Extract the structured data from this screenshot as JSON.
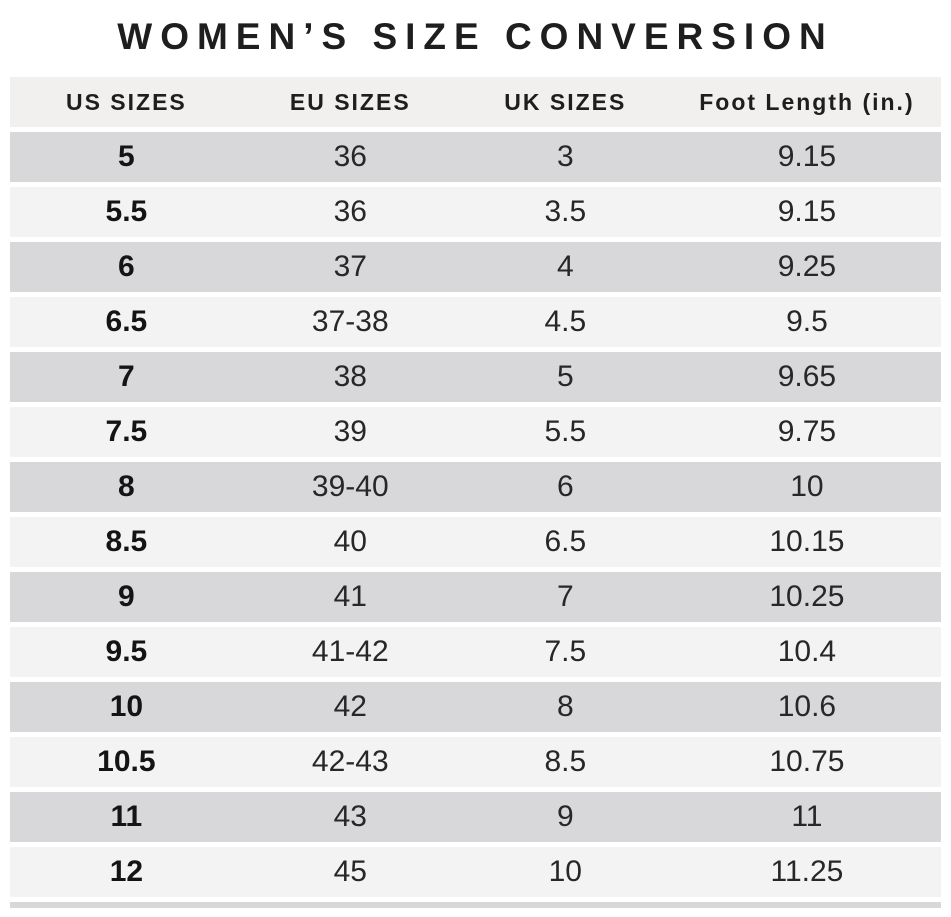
{
  "title": "WOMEN’S SIZE CONVERSION",
  "chart_data": {
    "type": "table",
    "title": "WOMEN’S SIZE CONVERSION",
    "columns": [
      "US SIZES",
      "EU SIZES",
      "UK SIZES",
      "Foot Length (in.)"
    ],
    "rows": [
      [
        "5",
        "36",
        "3",
        "9.15"
      ],
      [
        "5.5",
        "36",
        "3.5",
        "9.15"
      ],
      [
        "6",
        "37",
        "4",
        "9.25"
      ],
      [
        "6.5",
        "37-38",
        "4.5",
        "9.5"
      ],
      [
        "7",
        "38",
        "5",
        "9.65"
      ],
      [
        "7.5",
        "39",
        "5.5",
        "9.75"
      ],
      [
        "8",
        "39-40",
        "6",
        "10"
      ],
      [
        "8.5",
        "40",
        "6.5",
        "10.15"
      ],
      [
        "9",
        "41",
        "7",
        "10.25"
      ],
      [
        "9.5",
        "41-42",
        "7.5",
        "10.4"
      ],
      [
        "10",
        "42",
        "8",
        "10.6"
      ],
      [
        "10.5",
        "42-43",
        "8.5",
        "10.75"
      ],
      [
        "11",
        "43",
        "9",
        "11"
      ],
      [
        "12",
        "45",
        "10",
        "11.25"
      ]
    ],
    "layout": {
      "alternating_rows": true,
      "first_data_row_shade": "gray",
      "bold_column": "US SIZES"
    }
  },
  "colors": {
    "background": "#ffffff",
    "header_bg": "#f1f0ee",
    "row_gray": "#d8d8da",
    "row_light": "#f3f3f4",
    "text": "#1e1e1e"
  }
}
